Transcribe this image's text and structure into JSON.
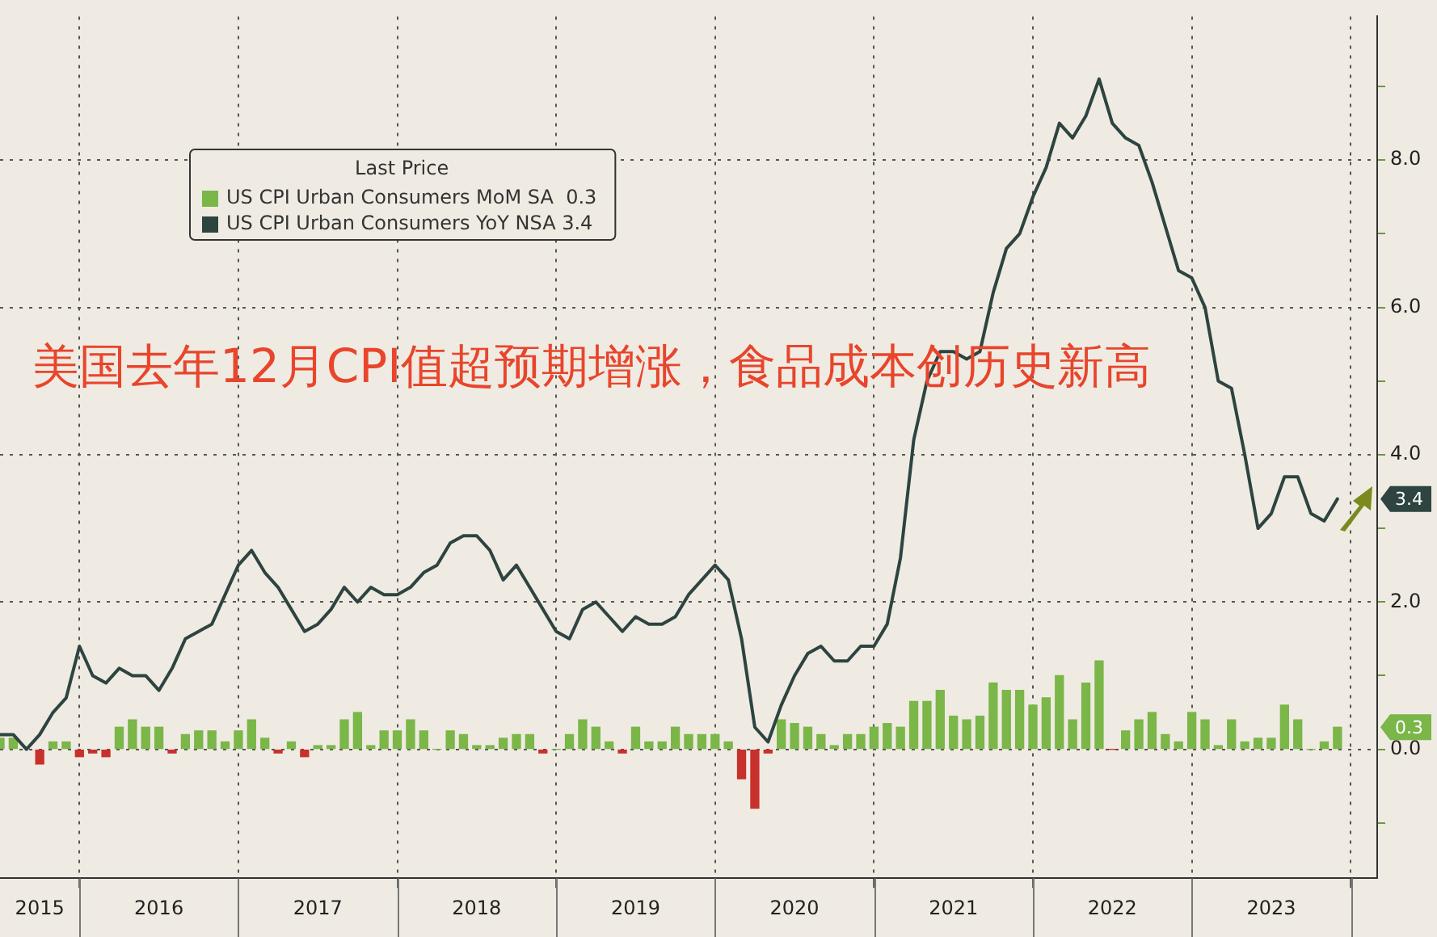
{
  "chart_data": {
    "type": "bar",
    "legend_title": "Last Price",
    "legend": "top left",
    "grid": true,
    "marker": "none",
    "annotations": [
      "美国去年12月CPI值超预期增涨，食品成本创历史新高",
      "0.3",
      "3.4"
    ],
    "x": [
      "2015-07",
      "2015-08",
      "2015-09",
      "2015-10",
      "2015-11",
      "2015-12",
      "2016-01",
      "2016-02",
      "2016-03",
      "2016-04",
      "2016-05",
      "2016-06",
      "2016-07",
      "2016-08",
      "2016-09",
      "2016-10",
      "2016-11",
      "2016-12",
      "2017-01",
      "2017-02",
      "2017-03",
      "2017-04",
      "2017-05",
      "2017-06",
      "2017-07",
      "2017-08",
      "2017-09",
      "2017-10",
      "2017-11",
      "2017-12",
      "2018-01",
      "2018-02",
      "2018-03",
      "2018-04",
      "2018-05",
      "2018-06",
      "2018-07",
      "2018-08",
      "2018-09",
      "2018-10",
      "2018-11",
      "2018-12",
      "2019-01",
      "2019-02",
      "2019-03",
      "2019-04",
      "2019-05",
      "2019-06",
      "2019-07",
      "2019-08",
      "2019-09",
      "2019-10",
      "2019-11",
      "2019-12",
      "2020-01",
      "2020-02",
      "2020-03",
      "2020-04",
      "2020-05",
      "2020-06",
      "2020-07",
      "2020-08",
      "2020-09",
      "2020-10",
      "2020-11",
      "2020-12",
      "2021-01",
      "2021-02",
      "2021-03",
      "2021-04",
      "2021-05",
      "2021-06",
      "2021-07",
      "2021-08",
      "2021-09",
      "2021-10",
      "2021-11",
      "2021-12",
      "2022-01",
      "2022-02",
      "2022-03",
      "2022-04",
      "2022-05",
      "2022-06",
      "2022-07",
      "2022-08",
      "2022-09",
      "2022-10",
      "2022-11",
      "2022-12",
      "2023-01",
      "2023-02",
      "2023-03",
      "2023-04",
      "2023-05",
      "2023-06",
      "2023-07",
      "2023-08",
      "2023-09",
      "2023-10",
      "2023-11",
      "2023-12"
    ],
    "xlim": [
      "2015-07",
      "2024-03"
    ],
    "xticks": [
      {
        "value": "2015-10",
        "label": "2015"
      },
      {
        "value": "2016-01",
        "label": null
      },
      {
        "value": "2016-07",
        "label": "2016"
      },
      {
        "value": "2017-01",
        "label": null
      },
      {
        "value": "2017-07",
        "label": "2017"
      },
      {
        "value": "2018-01",
        "label": null
      },
      {
        "value": "2018-07",
        "label": "2018"
      },
      {
        "value": "2019-01",
        "label": null
      },
      {
        "value": "2019-07",
        "label": "2019"
      },
      {
        "value": "2020-01",
        "label": null
      },
      {
        "value": "2020-07",
        "label": "2020"
      },
      {
        "value": "2021-01",
        "label": null
      },
      {
        "value": "2021-07",
        "label": "2021"
      },
      {
        "value": "2022-01",
        "label": null
      },
      {
        "value": "2022-07",
        "label": "2022"
      },
      {
        "value": "2023-01",
        "label": null
      },
      {
        "value": "2023-07",
        "label": "2023"
      },
      {
        "value": "2024-01",
        "label": null
      }
    ],
    "ylim": [
      -1.75,
      9.95
    ],
    "yticks": [
      {
        "value": -1,
        "label": null
      },
      {
        "value": 0,
        "label": "0.0"
      },
      {
        "value": 1,
        "label": null
      },
      {
        "value": 2,
        "label": "2.0"
      },
      {
        "value": 3,
        "label": null
      },
      {
        "value": 4,
        "label": "4.0"
      },
      {
        "value": 5,
        "label": null
      },
      {
        "value": 6,
        "label": "6.0"
      },
      {
        "value": 7,
        "label": null
      },
      {
        "value": 8,
        "label": "8.0"
      },
      {
        "value": 9,
        "label": null
      }
    ],
    "series": [
      {
        "name": "US CPI Urban Consumers MoM SA  0.3",
        "color": "#7ab648",
        "values": [
          0.15,
          0.15,
          null,
          -0.2,
          0.1,
          0.1,
          -0.1,
          -0.05,
          -0.1,
          0.3,
          0.4,
          0.3,
          0.3,
          -0.05,
          0.2,
          0.25,
          0.25,
          0.1,
          0.25,
          0.4,
          0.15,
          -0.05,
          0.1,
          -0.1,
          0.05,
          0.05,
          0.4,
          0.5,
          0.05,
          0.25,
          0.25,
          0.4,
          0.25,
          0.0,
          0.25,
          0.2,
          0.05,
          0.05,
          0.15,
          0.2,
          0.2,
          -0.05,
          0.0,
          0.2,
          0.4,
          0.3,
          0.1,
          -0.05,
          0.3,
          0.1,
          0.1,
          0.3,
          0.2,
          0.2,
          0.2,
          0.1,
          -0.4,
          -0.8,
          -0.05,
          0.4,
          0.35,
          0.3,
          0.2,
          0.05,
          0.2,
          0.2,
          0.3,
          0.35,
          0.3,
          0.65,
          0.65,
          0.8,
          0.45,
          0.4,
          0.45,
          0.9,
          0.8,
          0.8,
          0.6,
          0.7,
          1.0,
          0.4,
          0.9,
          1.2,
          0.0,
          0.25,
          0.4,
          0.5,
          0.2,
          0.1,
          0.5,
          0.4,
          0.05,
          0.4,
          0.1,
          0.15,
          0.15,
          0.6,
          0.4,
          0.0,
          0.1,
          0.3
        ],
        "colors": [
          "#7ab648",
          "#7ab648",
          "#7ab648",
          "#c8302c",
          "#7ab648",
          "#7ab648",
          "#c8302c",
          "#c8302c",
          "#c8302c",
          "#7ab648",
          "#7ab648",
          "#7ab648",
          "#7ab648",
          "#c8302c",
          "#7ab648",
          "#7ab648",
          "#7ab648",
          "#7ab648",
          "#7ab648",
          "#7ab648",
          "#7ab648",
          "#c8302c",
          "#7ab648",
          "#c8302c",
          "#7ab648",
          "#7ab648",
          "#7ab648",
          "#7ab648",
          "#7ab648",
          "#7ab648",
          "#7ab648",
          "#7ab648",
          "#7ab648",
          "#7ab648",
          "#7ab648",
          "#7ab648",
          "#7ab648",
          "#7ab648",
          "#7ab648",
          "#7ab648",
          "#7ab648",
          "#c8302c",
          "#7ab648",
          "#7ab648",
          "#7ab648",
          "#7ab648",
          "#7ab648",
          "#c8302c",
          "#7ab648",
          "#7ab648",
          "#7ab648",
          "#7ab648",
          "#7ab648",
          "#7ab648",
          "#7ab648",
          "#7ab648",
          "#c8302c",
          "#c8302c",
          "#c8302c",
          "#7ab648",
          "#7ab648",
          "#7ab648",
          "#7ab648",
          "#7ab648",
          "#7ab648",
          "#7ab648",
          "#7ab648",
          "#7ab648",
          "#7ab648",
          "#7ab648",
          "#7ab648",
          "#7ab648",
          "#7ab648",
          "#7ab648",
          "#7ab648",
          "#7ab648",
          "#7ab648",
          "#7ab648",
          "#7ab648",
          "#7ab648",
          "#7ab648",
          "#7ab648",
          "#7ab648",
          "#7ab648",
          "#c8302c",
          "#7ab648",
          "#7ab648",
          "#7ab648",
          "#7ab648",
          "#7ab648",
          "#7ab648",
          "#7ab648",
          "#7ab648",
          "#7ab648",
          "#7ab648",
          "#7ab648",
          "#7ab648",
          "#7ab648",
          "#7ab648",
          "#7ab648",
          "#7ab648",
          "#7ab648"
        ]
      },
      {
        "name": "US CPI Urban Consumers YoY NSA 3.4",
        "type": "line",
        "color": "#2d4440",
        "values": [
          0.2,
          0.2,
          0.0,
          0.2,
          0.5,
          0.7,
          1.4,
          1.0,
          0.9,
          1.1,
          1.0,
          1.0,
          0.8,
          1.1,
          1.5,
          1.6,
          1.7,
          2.1,
          2.5,
          2.7,
          2.4,
          2.2,
          1.9,
          1.6,
          1.7,
          1.9,
          2.2,
          2.0,
          2.2,
          2.1,
          2.1,
          2.2,
          2.4,
          2.5,
          2.8,
          2.9,
          2.9,
          2.7,
          2.3,
          2.5,
          2.2,
          1.9,
          1.6,
          1.5,
          1.9,
          2.0,
          1.8,
          1.6,
          1.8,
          1.7,
          1.7,
          1.8,
          2.1,
          2.3,
          2.5,
          2.3,
          1.5,
          0.3,
          0.1,
          0.6,
          1.0,
          1.3,
          1.4,
          1.2,
          1.2,
          1.4,
          1.4,
          1.7,
          2.6,
          4.2,
          5.0,
          5.4,
          5.4,
          5.3,
          5.4,
          6.2,
          6.8,
          7.0,
          7.5,
          7.9,
          8.5,
          8.3,
          8.6,
          9.1,
          8.5,
          8.3,
          8.2,
          7.7,
          7.1,
          6.5,
          6.4,
          6.0,
          5.0,
          4.9,
          4.0,
          3.0,
          3.2,
          3.7,
          3.7,
          3.2,
          3.1,
          3.4
        ]
      }
    ]
  }
}
